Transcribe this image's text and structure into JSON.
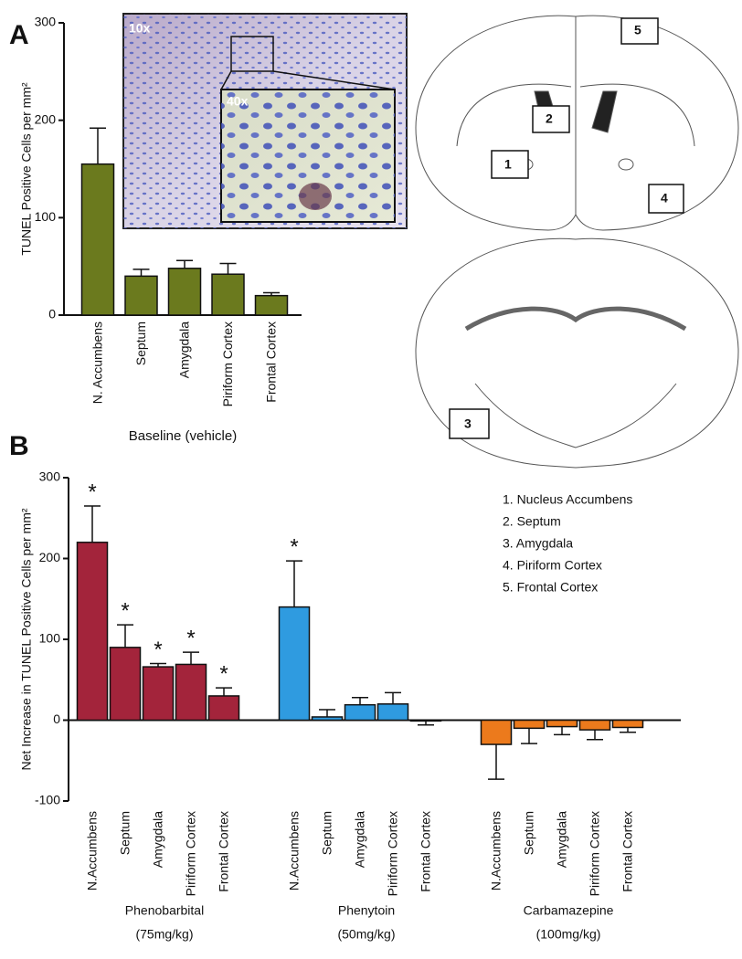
{
  "chart_data": [
    {
      "type": "bar",
      "panel": "A",
      "y_label": "TUNEL Positive Cells per mm²",
      "x_label": "Baseline (vehicle)",
      "categories": [
        "N. Accumbens",
        "Septum",
        "Amygdala",
        "Piriform Cortex",
        "Frontal Cortex"
      ],
      "values": [
        155,
        40,
        48,
        42,
        20
      ],
      "errors": [
        37,
        7,
        8,
        11,
        3
      ],
      "color": "#6b7a1e",
      "ylim": [
        0,
        300
      ],
      "yticks": [
        0,
        100,
        200,
        300
      ]
    },
    {
      "type": "grouped-bar",
      "panel": "B",
      "y_label": "Net Increase in TUNEL Positive Cells per mm²",
      "categories": [
        "N.Accumbens",
        "Septum",
        "Amygdala",
        "Piriform Cortex",
        "Frontal Cortex"
      ],
      "series": [
        {
          "name": "Phenobarbital",
          "dose": "(75mg/kg)",
          "color": "#a3243b",
          "values": [
            220,
            90,
            66,
            69,
            30
          ],
          "errors": [
            45,
            28,
            4,
            15,
            10
          ],
          "markers": [
            "*",
            "*",
            "*",
            "*",
            "*"
          ]
        },
        {
          "name": "Phenytoin",
          "dose": "(50mg/kg)",
          "color": "#2f9be0",
          "values": [
            140,
            4,
            19,
            20,
            -1
          ],
          "errors": [
            57,
            9,
            9,
            14,
            5
          ],
          "markers": [
            "*",
            null,
            null,
            null,
            null
          ]
        },
        {
          "name": "Carbamazepine",
          "dose": "(100mg/kg)",
          "color": "#ec7a1c",
          "values": [
            -30,
            -10,
            -8,
            -12,
            -9
          ],
          "errors": [
            43,
            19,
            10,
            12,
            6
          ],
          "markers": [
            null,
            null,
            null,
            null,
            null
          ]
        }
      ],
      "ylim": [
        -100,
        300
      ],
      "yticks": [
        -100,
        0,
        100,
        200,
        300
      ]
    }
  ],
  "micrograph": {
    "low_mag": "10x",
    "high_mag": "40x"
  },
  "brain_regions": [
    "1",
    "2",
    "3",
    "4",
    "5"
  ],
  "region_legend": [
    "1. Nucleus Accumbens",
    "2. Septum",
    "3. Amygdala",
    "4. Piriform Cortex",
    "5. Frontal Cortex"
  ]
}
